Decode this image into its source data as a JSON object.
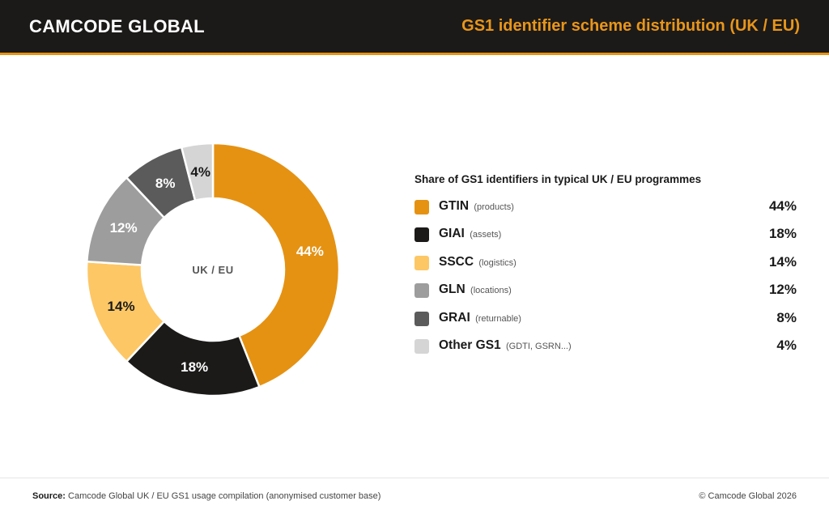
{
  "header": {
    "brand": "CAMCODE GLOBAL",
    "title": "GS1 identifier scheme distribution (UK / EU)"
  },
  "chart_data": {
    "type": "pie",
    "title": "Share of GS1 identifiers in typical UK / EU programmes",
    "center_label": "UK / EU",
    "unit": "%",
    "legend_position": "right",
    "slices": [
      {
        "name": "GTIN",
        "note": "(products)",
        "value": 44,
        "color": "#e59212",
        "label_color": "#ffffff"
      },
      {
        "name": "GIAI",
        "note": "(assets)",
        "value": 18,
        "color": "#1c1a19",
        "label_color": "#ffffff"
      },
      {
        "name": "SSCC",
        "note": "(logistics)",
        "value": 14,
        "color": "#fdc766",
        "label_color": "#1a1a1a"
      },
      {
        "name": "GLN",
        "note": "(locations)",
        "value": 12,
        "color": "#9d9d9d",
        "label_color": "#ffffff"
      },
      {
        "name": "GRAI",
        "note": "(returnable)",
        "value": 8,
        "color": "#5b5b5b",
        "label_color": "#ffffff"
      },
      {
        "name": "Other GS1",
        "note": "(GDTI, GSRN...)",
        "value": 4,
        "color": "#d5d5d5",
        "label_color": "#1a1a1a"
      }
    ]
  },
  "footer": {
    "source_label": "Source:",
    "source_text": "Camcode Global UK / EU GS1 usage compilation (anonymised customer base)",
    "copyright": "© Camcode Global 2026"
  }
}
